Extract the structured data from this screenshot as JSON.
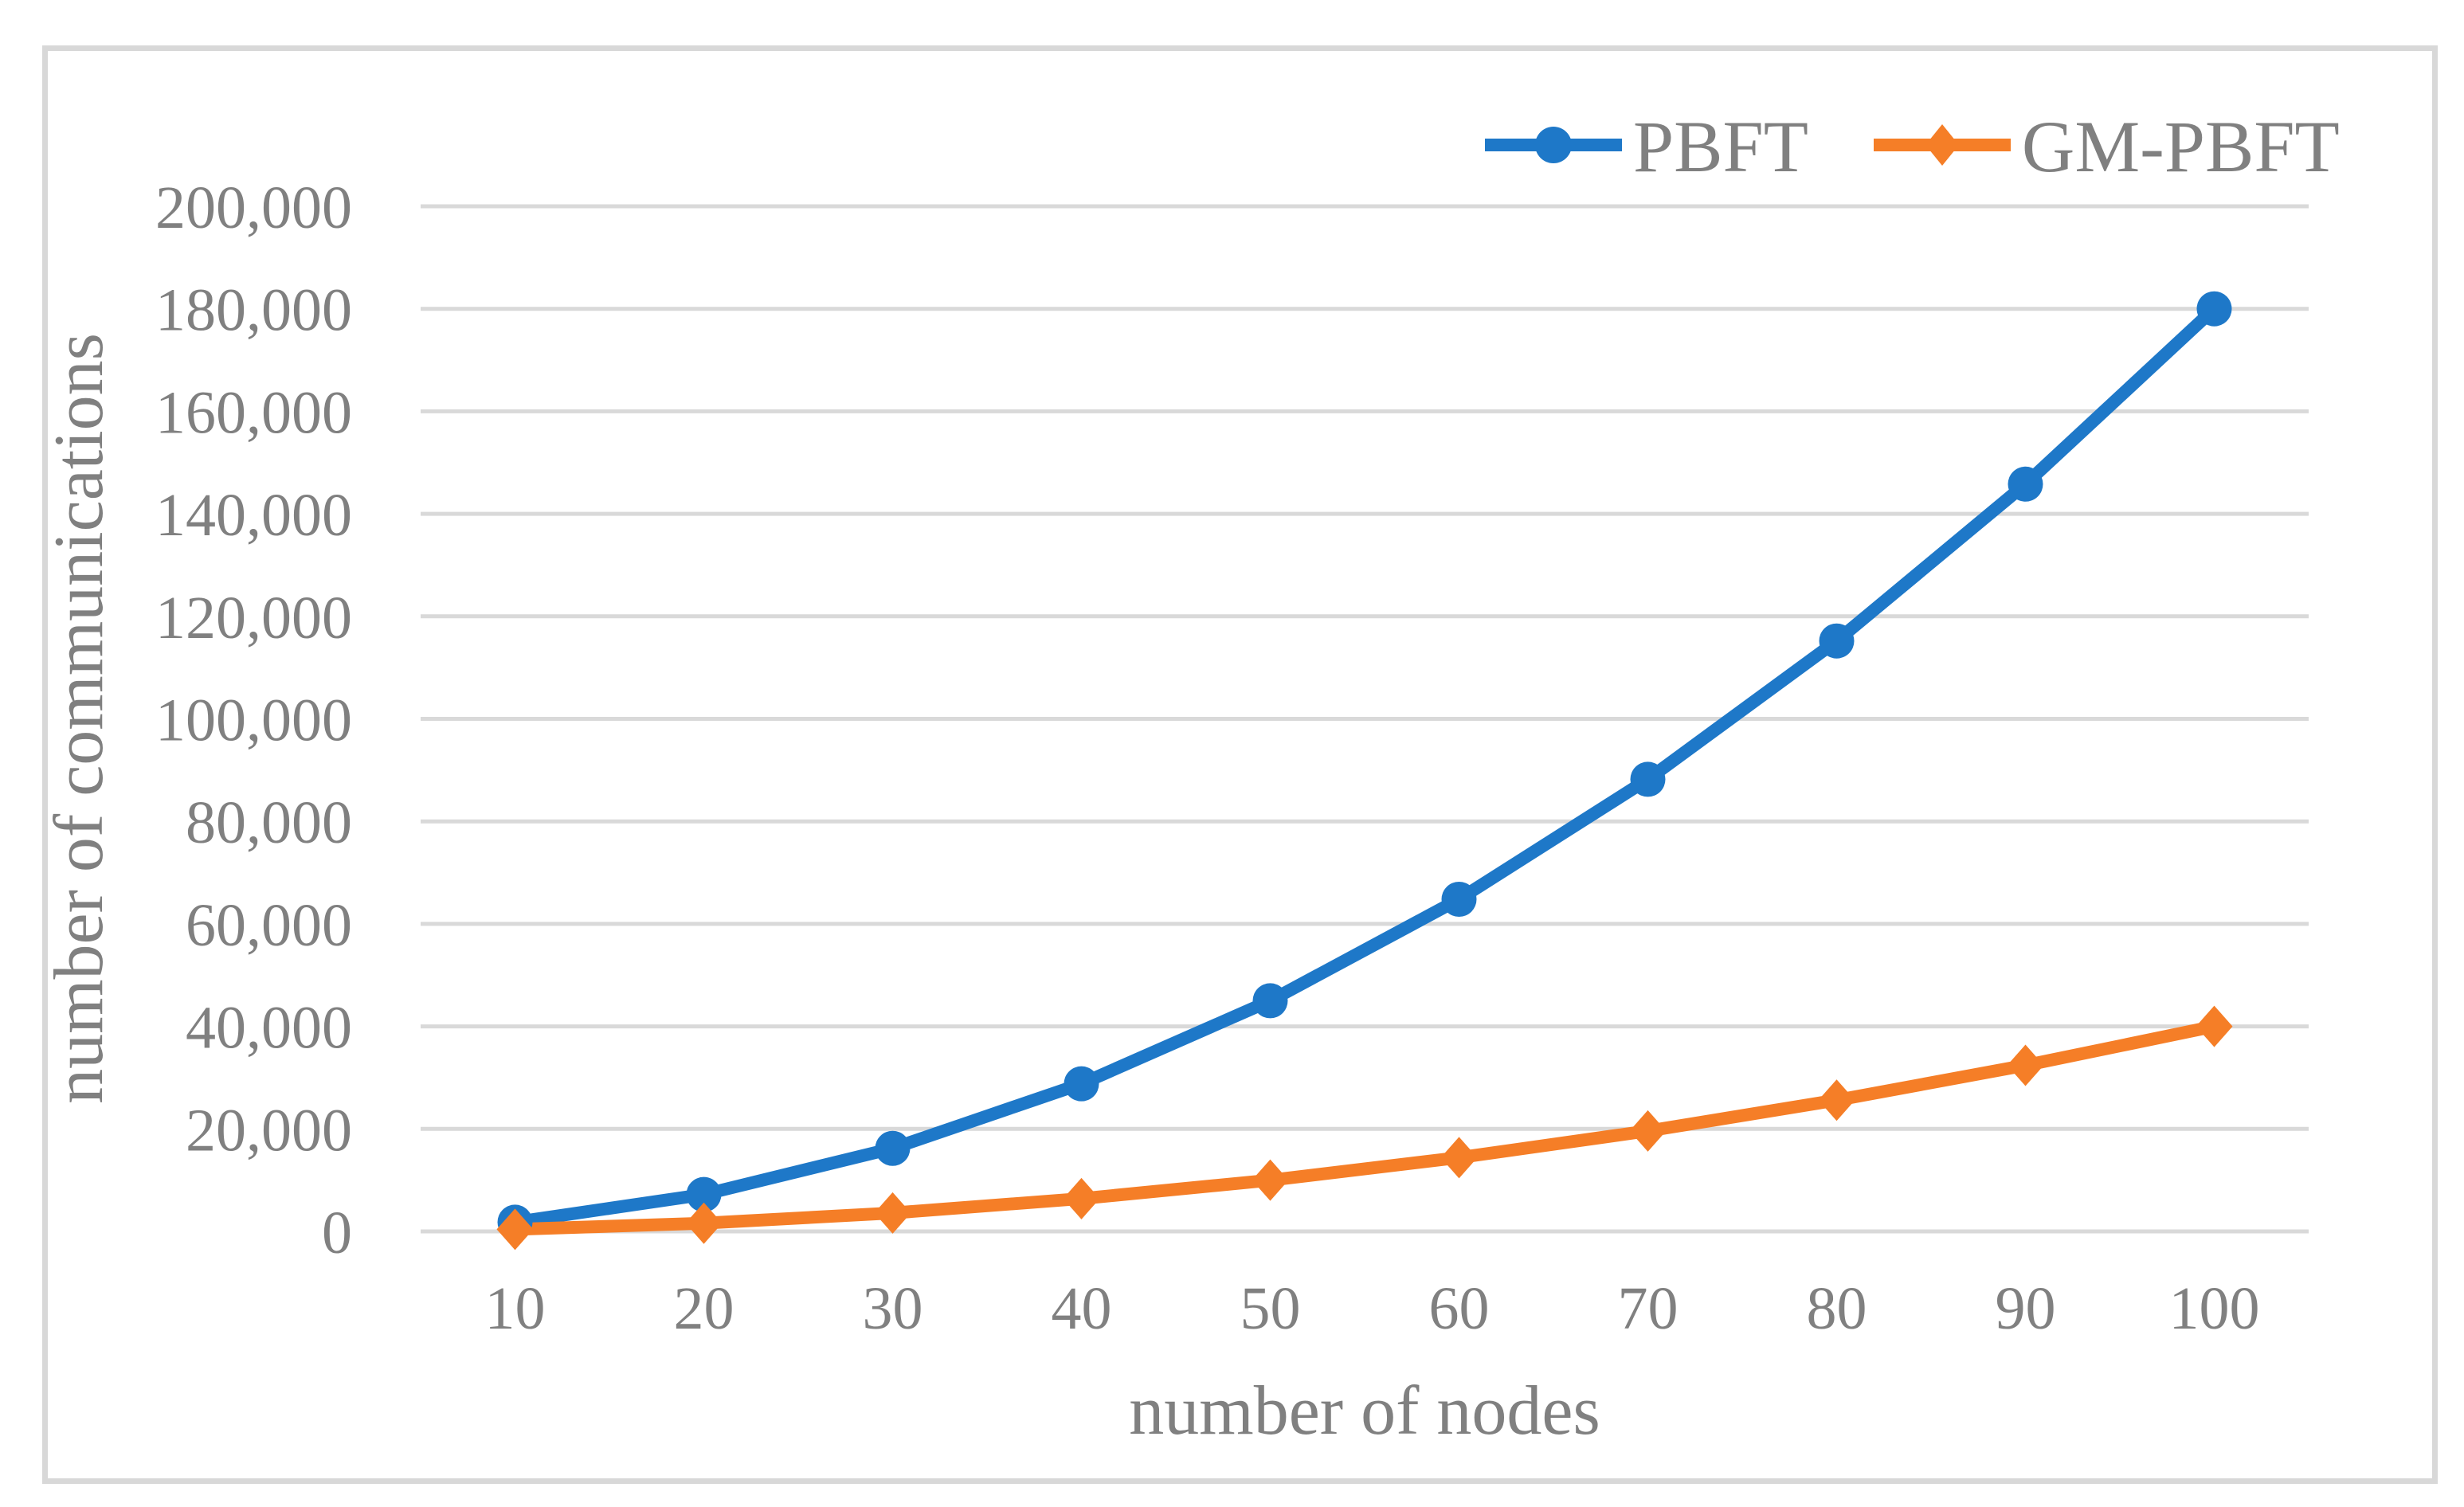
{
  "figure": {
    "background_color": "#FFFFFF",
    "border_color": "#D8D8D8",
    "text_color": "#808080",
    "gridline_color": "#D9D9D9"
  },
  "chart_data": {
    "type": "line",
    "title": "",
    "xlabel": "number of nodes",
    "ylabel": "number of communications",
    "x": [
      10,
      20,
      30,
      40,
      50,
      60,
      70,
      80,
      90,
      100
    ],
    "xtick_labels": [
      "10",
      "20",
      "30",
      "40",
      "50",
      "60",
      "70",
      "80",
      "90",
      "100"
    ],
    "ylim": [
      0,
      200000
    ],
    "ytick_step": 20000,
    "ytick_labels": [
      "0",
      "20,000",
      "40,000",
      "60,000",
      "80,000",
      "100,000",
      "120,000",
      "140,000",
      "160,000",
      "180,000",
      "200,000"
    ],
    "grid": true,
    "legend_position": "top-right",
    "series": [
      {
        "name": "PBFT",
        "color": "#1E78C8",
        "marker": "circle",
        "values": [
          1800,
          7200,
          16200,
          28800,
          45000,
          64800,
          88200,
          115200,
          145800,
          180000
        ]
      },
      {
        "name": "GM-PBFT",
        "color": "#F57E27",
        "marker": "diamond",
        "values": [
          400,
          1600,
          3600,
          6400,
          10000,
          14400,
          19600,
          25600,
          32400,
          40000
        ]
      }
    ]
  }
}
